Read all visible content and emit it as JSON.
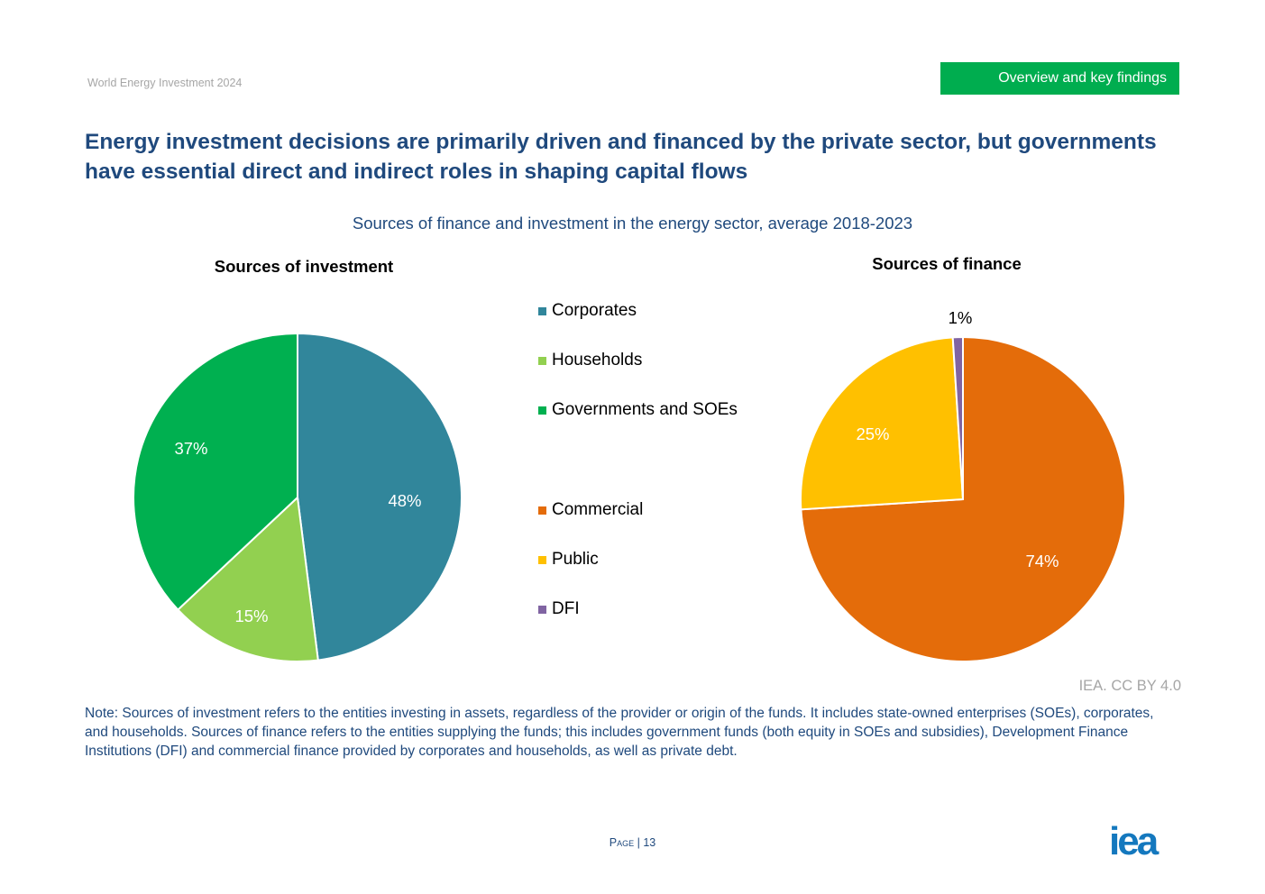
{
  "header": {
    "report": "World Energy Investment 2024",
    "section": "Overview and key findings"
  },
  "title": "Energy investment decisions are primarily driven and financed by the private sector, but governments have essential direct and indirect roles in shaping capital flows",
  "figure_title": "Sources of finance and investment in the energy sector, average 2018-2023",
  "chart_data": [
    {
      "type": "pie",
      "title": "Sources of investment",
      "categories": [
        "Corporates",
        "Households",
        "Governments and SOEs"
      ],
      "values": [
        48,
        15,
        37
      ],
      "labels": [
        "48%",
        "15%",
        "37%"
      ],
      "colors": [
        "#31869b",
        "#92d050",
        "#00b050"
      ],
      "label_colors": [
        "#ffffff",
        "#ffffff",
        "#ffffff"
      ]
    },
    {
      "type": "pie",
      "title": "Sources of finance",
      "categories": [
        "Commercial",
        "Public",
        "DFI"
      ],
      "values": [
        74,
        25,
        1
      ],
      "labels": [
        "74%",
        "25%",
        "1%"
      ],
      "colors": [
        "#e46c0a",
        "#ffc000",
        "#8064a2"
      ],
      "label_colors": [
        "#ffffff",
        "#ffffff",
        "#000000"
      ]
    }
  ],
  "source": "IEA. CC BY 4.0",
  "note": "Note: Sources of investment refers to the entities investing in assets, regardless of the provider or origin of the funds. It includes state-owned enterprises (SOEs), corporates, and households. Sources of finance refers to the entities supplying the funds; this includes government funds (both equity in SOEs and subsidies), Development Finance Institutions (DFI) and commercial finance provided by corporates and households, as well as private debt.",
  "footer": {
    "page_label": "Page",
    "page_number": "| 13",
    "logo": "iea"
  }
}
